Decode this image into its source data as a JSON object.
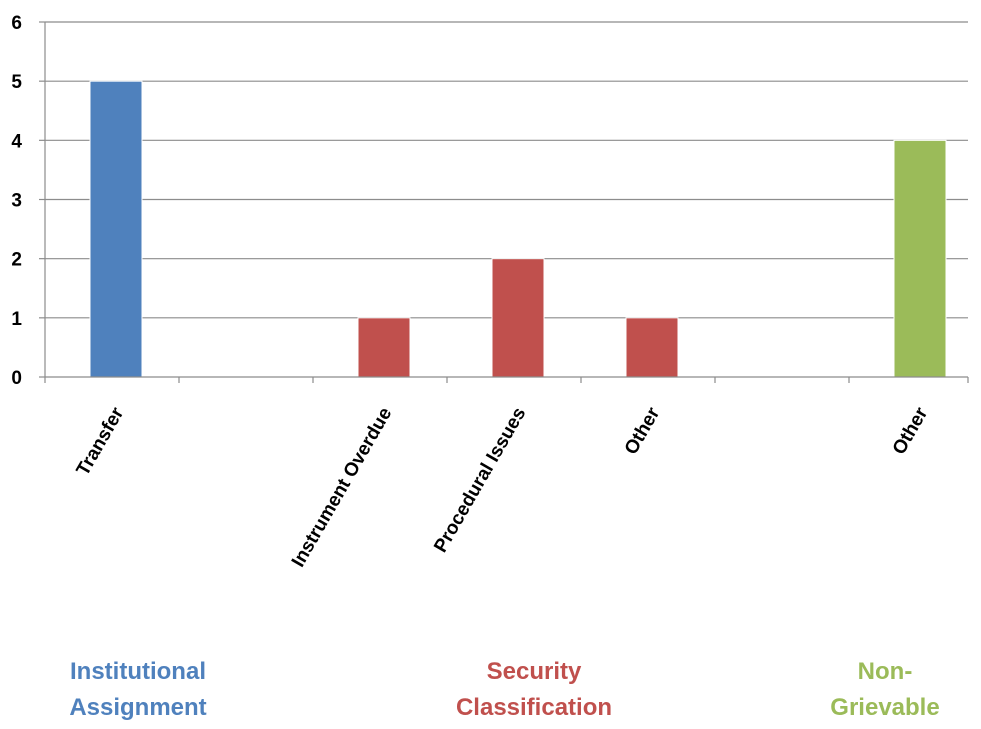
{
  "chart_data": {
    "type": "bar",
    "categories": [
      "Transfer",
      "",
      "Instrument Overdue",
      "Procedural Issues",
      "Other",
      "",
      "Other"
    ],
    "values": [
      5,
      0,
      1,
      2,
      1,
      0,
      4
    ],
    "bar_groups": [
      0,
      null,
      1,
      1,
      1,
      null,
      2
    ],
    "ylim": [
      0,
      6
    ],
    "yticks": [
      "0",
      "1",
      "2",
      "3",
      "4",
      "5",
      "6"
    ],
    "grid": true,
    "title": "",
    "xlabel": "",
    "ylabel": "",
    "groups": [
      {
        "label": "Institutional\nAssignment",
        "color": "#4F81BD"
      },
      {
        "label": "Security\nClassification",
        "color": "#C0504D"
      },
      {
        "label": "Non-\nGrievable",
        "color": "#9BBB59"
      }
    ]
  }
}
